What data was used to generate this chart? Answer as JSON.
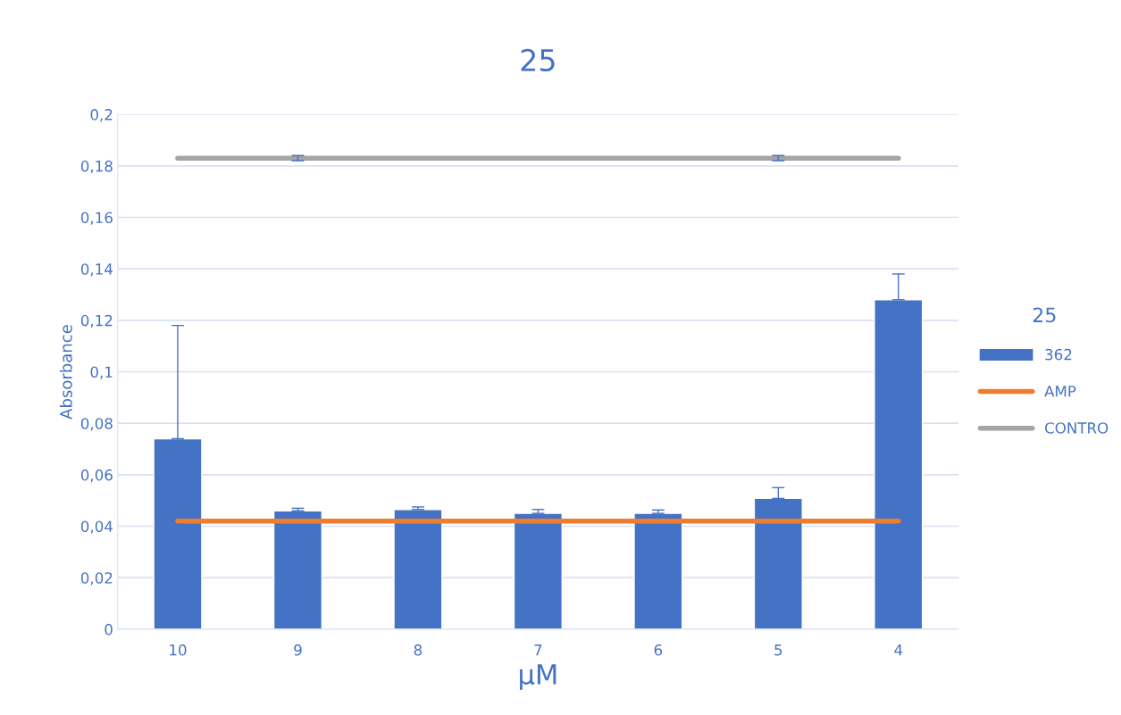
{
  "chart_data": {
    "type": "bar",
    "title": "25",
    "xlabel": "µM",
    "ylabel": "Absorbance",
    "legend_title": "25",
    "categories": [
      "10",
      "9",
      "8",
      "7",
      "6",
      "5",
      "4"
    ],
    "series": [
      {
        "name": "362",
        "color": "#4472c4",
        "values": [
          0.074,
          0.046,
          0.0465,
          0.045,
          0.045,
          0.0508,
          0.128
        ],
        "errors": [
          [
            0.074,
            0.118
          ],
          [
            0.046,
            0.047
          ],
          [
            0.0465,
            0.0475
          ],
          [
            0.045,
            0.0465
          ],
          [
            0.045,
            0.0463
          ],
          [
            0.0508,
            0.055
          ],
          [
            0.128,
            0.138
          ]
        ]
      },
      {
        "name": "AMP",
        "type": "line",
        "color": "#ed7d31",
        "values": [
          0.042,
          0.042,
          0.042,
          0.042,
          0.042,
          0.042,
          0.042
        ]
      },
      {
        "name": "CONTRO",
        "type": "line",
        "color": "#a5a5a5",
        "values": [
          0.183,
          0.183,
          0.183,
          0.183,
          0.183,
          0.183,
          0.183
        ],
        "errors": [
          null,
          [
            0.182,
            0.184
          ],
          null,
          null,
          null,
          [
            0.182,
            0.184
          ],
          null
        ]
      }
    ],
    "ylim": [
      0,
      0.2
    ],
    "yticks": [
      {
        "value": 0,
        "label": "0"
      },
      {
        "value": 0.02,
        "label": "0,02"
      },
      {
        "value": 0.04,
        "label": "0,04"
      },
      {
        "value": 0.06,
        "label": "0,06"
      },
      {
        "value": 0.08,
        "label": "0,08"
      },
      {
        "value": 0.1,
        "label": "0,1"
      },
      {
        "value": 0.12,
        "label": "0,12"
      },
      {
        "value": 0.14,
        "label": "0,14"
      },
      {
        "value": 0.16,
        "label": "0,16"
      },
      {
        "value": 0.18,
        "label": "0,18"
      },
      {
        "value": 0.2,
        "label": "0,2"
      }
    ],
    "grid": "y",
    "legend": "right",
    "marker": "none",
    "line_style": "solid"
  }
}
